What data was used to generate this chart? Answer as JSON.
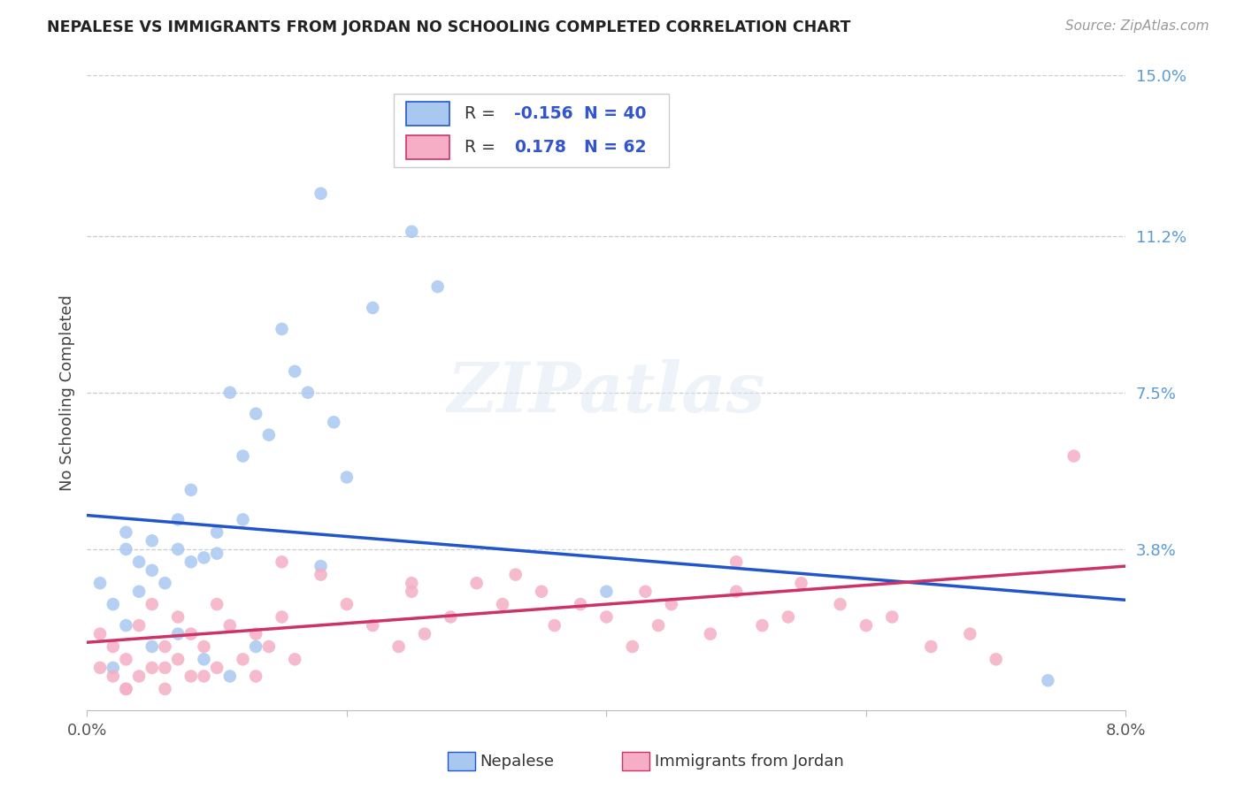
{
  "title": "NEPALESE VS IMMIGRANTS FROM JORDAN NO SCHOOLING COMPLETED CORRELATION CHART",
  "source": "Source: ZipAtlas.com",
  "ylabel": "No Schooling Completed",
  "xlim": [
    0.0,
    0.08
  ],
  "ylim": [
    0.0,
    0.15
  ],
  "blue_r": "-0.156",
  "blue_n": "40",
  "pink_r": "0.178",
  "pink_n": "62",
  "blue_color": "#a8c8f0",
  "pink_color": "#f5aec5",
  "blue_line_color": "#2255cc",
  "pink_line_color": "#cc3366",
  "legend_label_blue": "Nepalese",
  "legend_label_pink": "Immigrants from Jordan",
  "legend_text_color": "#333333",
  "legend_value_color": "#3355cc",
  "ytick_vals": [
    0.038,
    0.075,
    0.112,
    0.15
  ],
  "ytick_labels": [
    "3.8%",
    "7.5%",
    "11.2%",
    "15.0%"
  ],
  "right_label_color": "#5b9bd5",
  "grid_color": "#cccccc",
  "blue_line_start_y": 0.046,
  "blue_line_end_y": 0.026,
  "pink_line_start_y": 0.016,
  "pink_line_end_y": 0.034,
  "blue_x": [
    0.001,
    0.002,
    0.003,
    0.003,
    0.004,
    0.004,
    0.005,
    0.005,
    0.006,
    0.007,
    0.007,
    0.008,
    0.008,
    0.009,
    0.01,
    0.01,
    0.011,
    0.012,
    0.012,
    0.013,
    0.014,
    0.015,
    0.016,
    0.017,
    0.018,
    0.019,
    0.02,
    0.022,
    0.025,
    0.027,
    0.002,
    0.003,
    0.005,
    0.007,
    0.009,
    0.011,
    0.013,
    0.04,
    0.018,
    0.074
  ],
  "blue_y": [
    0.03,
    0.025,
    0.038,
    0.042,
    0.035,
    0.028,
    0.033,
    0.04,
    0.03,
    0.045,
    0.038,
    0.035,
    0.052,
    0.036,
    0.042,
    0.037,
    0.075,
    0.06,
    0.045,
    0.07,
    0.065,
    0.09,
    0.08,
    0.075,
    0.122,
    0.068,
    0.055,
    0.095,
    0.113,
    0.1,
    0.01,
    0.02,
    0.015,
    0.018,
    0.012,
    0.008,
    0.015,
    0.028,
    0.034,
    0.007
  ],
  "pink_x": [
    0.001,
    0.001,
    0.002,
    0.002,
    0.003,
    0.003,
    0.004,
    0.004,
    0.005,
    0.005,
    0.006,
    0.006,
    0.007,
    0.007,
    0.008,
    0.008,
    0.009,
    0.01,
    0.01,
    0.011,
    0.012,
    0.013,
    0.013,
    0.014,
    0.015,
    0.016,
    0.018,
    0.02,
    0.022,
    0.024,
    0.025,
    0.026,
    0.028,
    0.03,
    0.032,
    0.033,
    0.035,
    0.036,
    0.038,
    0.04,
    0.042,
    0.043,
    0.044,
    0.045,
    0.048,
    0.05,
    0.052,
    0.054,
    0.055,
    0.058,
    0.06,
    0.062,
    0.065,
    0.068,
    0.07,
    0.003,
    0.006,
    0.009,
    0.015,
    0.025,
    0.05,
    0.076
  ],
  "pink_y": [
    0.018,
    0.01,
    0.015,
    0.008,
    0.012,
    0.005,
    0.02,
    0.008,
    0.025,
    0.01,
    0.015,
    0.005,
    0.022,
    0.012,
    0.018,
    0.008,
    0.015,
    0.025,
    0.01,
    0.02,
    0.012,
    0.008,
    0.018,
    0.015,
    0.022,
    0.012,
    0.032,
    0.025,
    0.02,
    0.015,
    0.028,
    0.018,
    0.022,
    0.03,
    0.025,
    0.032,
    0.028,
    0.02,
    0.025,
    0.022,
    0.015,
    0.028,
    0.02,
    0.025,
    0.018,
    0.028,
    0.02,
    0.022,
    0.03,
    0.025,
    0.02,
    0.022,
    0.015,
    0.018,
    0.012,
    0.005,
    0.01,
    0.008,
    0.035,
    0.03,
    0.035,
    0.06
  ]
}
